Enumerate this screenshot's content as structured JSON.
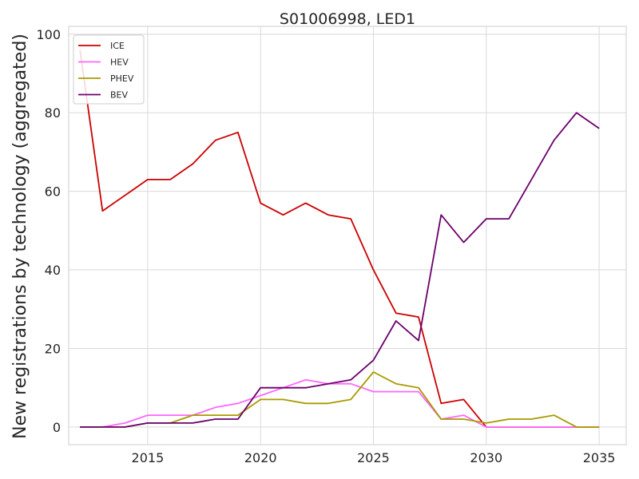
{
  "chart_data": {
    "type": "line",
    "title": "S01006998, LED1",
    "xlabel": "",
    "ylabel": "New registrations by technology (aggregated)",
    "x": [
      2012,
      2013,
      2014,
      2015,
      2016,
      2017,
      2018,
      2019,
      2020,
      2021,
      2022,
      2023,
      2024,
      2025,
      2026,
      2027,
      2028,
      2029,
      2030,
      2031,
      2032,
      2033,
      2034,
      2035
    ],
    "xlim": [
      2011.5,
      2036.2
    ],
    "ylim": [
      -4.5,
      102
    ],
    "xticks": [
      2015,
      2020,
      2025,
      2030,
      2035
    ],
    "yticks": [
      0,
      20,
      40,
      60,
      80,
      100
    ],
    "grid": true,
    "legend_position": "top-left",
    "series": [
      {
        "name": "ICE",
        "color": "#cc0000",
        "values": [
          96,
          55,
          59,
          63,
          63,
          67,
          73,
          75,
          57,
          54,
          57,
          54,
          53,
          40,
          29,
          28,
          6,
          7,
          0,
          0,
          0,
          0,
          0,
          0
        ]
      },
      {
        "name": "HEV",
        "color": "#ff66ff",
        "values": [
          0,
          0,
          1,
          3,
          3,
          3,
          5,
          6,
          8,
          10,
          12,
          11,
          11,
          9,
          9,
          9,
          2,
          3,
          0,
          0,
          0,
          0,
          0,
          0
        ]
      },
      {
        "name": "PHEV",
        "color": "#a89a00",
        "values": [
          0,
          0,
          0,
          1,
          1,
          3,
          3,
          3,
          7,
          7,
          6,
          6,
          7,
          14,
          11,
          10,
          2,
          2,
          1,
          2,
          2,
          3,
          0,
          0
        ]
      },
      {
        "name": "BEV",
        "color": "#6b006b",
        "values": [
          0,
          0,
          0,
          1,
          1,
          1,
          2,
          2,
          10,
          10,
          10,
          11,
          12,
          17,
          27,
          22,
          54,
          47,
          53,
          53,
          63,
          73,
          80,
          76
        ]
      }
    ]
  }
}
